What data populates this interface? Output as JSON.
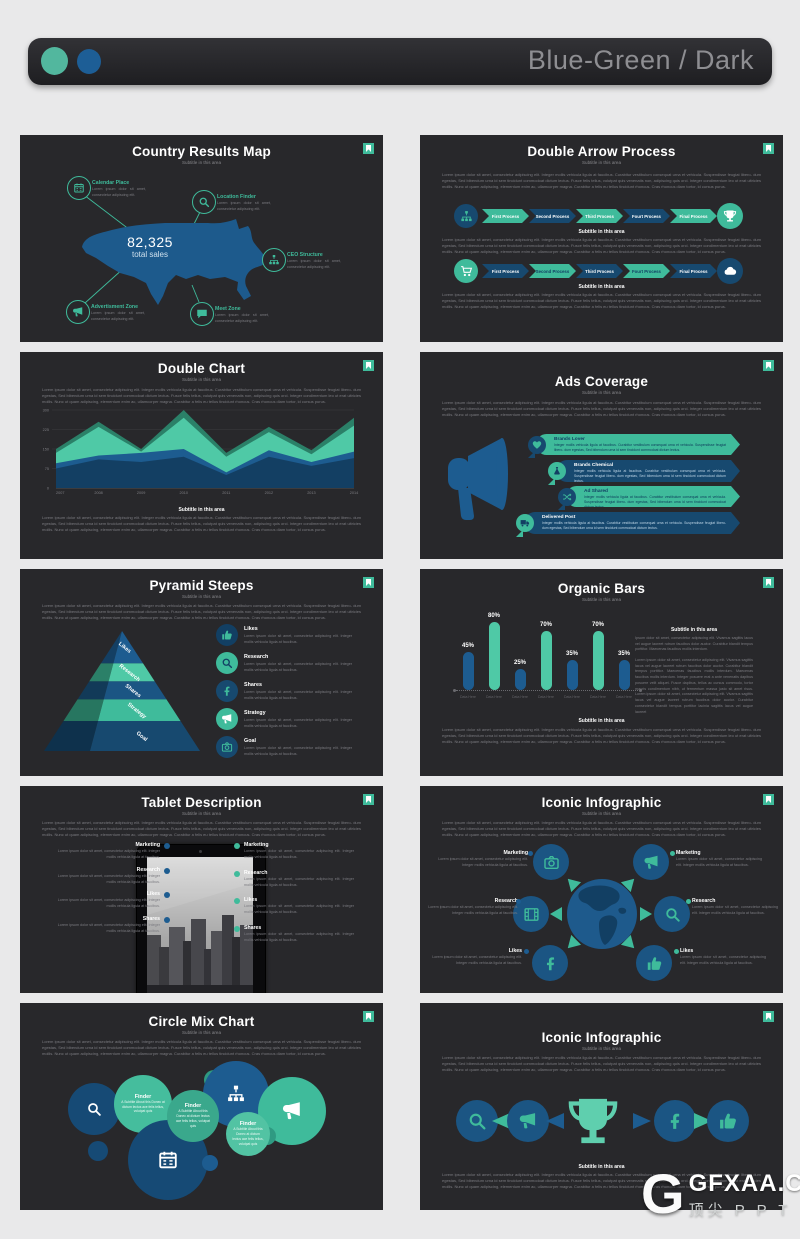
{
  "header": {
    "title": "Blue-Green / Dark",
    "dot1_color": "#52b79e",
    "dot2_color": "#1d5e96"
  },
  "theme": {
    "teal": "#3fbb9b",
    "teal_light": "#4fc9a6",
    "teal_dark": "#2b8068",
    "blue": "#1d5c90",
    "blue_dark": "#17496f",
    "blue_deep": "#123f63",
    "slide_bg": "#28282b",
    "page_bg": "#e9e9ea"
  },
  "common": {
    "subtitle": "Subtitle in this area",
    "lorem_paragraph": "Lorem ipsum dolor sit amet, consectetur adipiscing elit. Integer mollis vehicula ligula at faucibus. Curabitur vestibulum consequat urna et vehicula. Suspendisse feugiat libero- dum egestas, Sed bibendum urna id sem tincidunt commodoat dictum lectus. Fusce felis tellus, volutpat quis venenatis non, adipiscing quis orci. Integer condimentum leo ut erat ultricies mollis. Nunc ut quam adipiscing, elementum enim ac, ullamcorper magna. Curabitur a felis eu tellus tincidunt rhoncus. Cras rhoncus diam tortor, id cursus purus.",
    "lorem_short": "Lorem ipsum dolor sit amet, consectetur adipiscing elit.",
    "lorem_item": "Lorem ipsum dolor sit amet, consectetur adipiscing elit. Integer mollis vehicula ligula at faucibus."
  },
  "slides": {
    "map": {
      "title": "Country Results Map",
      "stat_value": "82,325",
      "stat_label": "total sales",
      "callouts": [
        {
          "icon": "calendar",
          "label": "Calendar Place",
          "text": "Lorem ipsum dolor sit amet, consectetur adipiscing elit."
        },
        {
          "icon": "search",
          "label": "Location Finder",
          "text": "Lorem ipsum dolor sit amet, consectetur adipiscing elit."
        },
        {
          "icon": "sitemap",
          "label": "CEO Structure",
          "text": "Lorem ipsum dolor sit amet, consectetur adipiscing elit."
        },
        {
          "icon": "megaphone",
          "label": "Advertisment Zone",
          "text": "Lorem ipsum dolor sit amet, consectetur adipiscing elit."
        },
        {
          "icon": "chat",
          "label": "Meet Zone",
          "text": "Lorem ipsum dolor sit amet, consectetur adipiscing elit."
        }
      ]
    },
    "double_arrow": {
      "title": "Double Arrow Process",
      "rows": [
        {
          "start_icon": "sitemap",
          "start_bg": "#17496f",
          "start_ic": "#3fbb9b",
          "end_icon": "trophy",
          "end_bg": "#3fbb9b",
          "end_ic": "#ffffff",
          "steps": [
            {
              "label": "First Process",
              "bg": "#3fbb9b",
              "fg": "#ffffff"
            },
            {
              "label": "Second Process",
              "bg": "#17496f",
              "fg": "#ffffff"
            },
            {
              "label": "Third Process",
              "bg": "#3fbb9b",
              "fg": "#ffffff"
            },
            {
              "label": "Fourt Process",
              "bg": "#17496f",
              "fg": "#ffffff"
            },
            {
              "label": "Final Process",
              "bg": "#3fbb9b",
              "fg": "#ffffff"
            }
          ]
        },
        {
          "start_icon": "cart",
          "start_bg": "#3fbb9b",
          "start_ic": "#ffffff",
          "end_icon": "cloud",
          "end_bg": "#17496f",
          "end_ic": "#ffffff",
          "steps": [
            {
              "label": "First Process",
              "bg": "#17496f",
              "fg": "#ffffff"
            },
            {
              "label": "Second Process",
              "bg": "#3fbb9b",
              "fg": "#123f63"
            },
            {
              "label": "Third Process",
              "bg": "#17496f",
              "fg": "#ffffff"
            },
            {
              "label": "Fourt Process",
              "bg": "#3fbb9b",
              "fg": "#123f63"
            },
            {
              "label": "Final Process",
              "bg": "#17496f",
              "fg": "#ffffff"
            }
          ]
        }
      ]
    },
    "double_chart": {
      "title": "Double Chart"
    },
    "ads": {
      "title": "Ads Coverage",
      "items": [
        {
          "icon": "heart",
          "label": "Brands Lover",
          "bg": "#3fbb9b",
          "circle": "#17496f",
          "ic": "#3fbb9b",
          "title_color": "#123f63",
          "text_color": "#0d3a5a",
          "text": "Integer mollis vehicula ligula at faucibus. Curabitur vestibulum consequat urna et vehicula. Suspendisse feugiat libero- dum egestas, Sed bibendum urna id sem tincidunt commodoat dictum lectus."
        },
        {
          "icon": "flask",
          "label": "Brands Chemical",
          "bg": "#17496f",
          "circle": "#3fbb9b",
          "ic": "#123f63",
          "title_color": "#ffffff",
          "text_color": "#bcd3e4",
          "text": "Integer mollis vehicula ligula at faucibus. Curabitur vestibulum consequat urna et vehicula. Suspendisse feugiat libero- dum egestas, Sed bibendum urna id sem tincidunt commodoat dictum lectus."
        },
        {
          "icon": "shuffle",
          "label": "Ad Shared",
          "bg": "#3fbb9b",
          "circle": "#17496f",
          "ic": "#3fbb9b",
          "title_color": "#123f63",
          "text_color": "#0d3a5a",
          "text": "Integer mollis vehicula ligula at faucibus. Curabitur vestibulum consequat urna et vehicula. Suspendisse feugiat libero- dum egestas, Sed bibendum urna id sem tincidunt commodoat dictum lectus."
        },
        {
          "icon": "truck",
          "label": "Delivered Post",
          "bg": "#17496f",
          "circle": "#3fbb9b",
          "ic": "#123f63",
          "title_color": "#ffffff",
          "text_color": "#bcd3e4",
          "text": "Integer mollis vehicula ligula at faucibus. Curabitur vestibulum consequat urna et vehicula. Suspendisse feugiat libero- dum egestas, Sed bibendum urna id sem tincidunt commodoat dictum lectus."
        }
      ]
    },
    "pyramid": {
      "title": "Pyramid Steeps",
      "levels": [
        {
          "label": "Likes",
          "color": "#1d5c90",
          "dark": "#143f63"
        },
        {
          "label": "Research",
          "color": "#4fc9a6",
          "dark": "#2b8068"
        },
        {
          "label": "Shares",
          "color": "#1b5583",
          "dark": "#123a58"
        },
        {
          "label": "Strategy",
          "color": "#3fbb9b",
          "dark": "#277660"
        },
        {
          "label": "Goal",
          "color": "#17496f",
          "dark": "#0e314c"
        }
      ],
      "list": [
        {
          "icon": "thumb",
          "circle": "#123f63",
          "ic": "#3fbb9b",
          "label": "Likes",
          "text": "Lorem ipsum dolor sit amet, consectetur adipiscing elit. Integer mollis vehicula ligula at faucibus."
        },
        {
          "icon": "search",
          "circle": "#3fbb9b",
          "ic": "#123f63",
          "label": "Research",
          "text": "Lorem ipsum dolor sit amet, consectetur adipiscing elit. Integer mollis vehicula ligula at faucibus."
        },
        {
          "icon": "facebook",
          "circle": "#17496f",
          "ic": "#3fbb9b",
          "label": "Shares",
          "text": "Lorem ipsum dolor sit amet, consectetur adipiscing elit. Integer mollis vehicula ligula at faucibus."
        },
        {
          "icon": "megaphone",
          "circle": "#3fbb9b",
          "ic": "#ffffff",
          "label": "Strategy",
          "text": "Lorem ipsum dolor sit amet, consectetur adipiscing elit. Integer mollis vehicula ligula at faucibus."
        },
        {
          "icon": "camera",
          "circle": "#17496f",
          "ic": "#3fbb9b",
          "label": "Goal",
          "text": "Lorem ipsum dolor sit amet, consectetur adipiscing elit. Integer mollis vehicula ligula at faucibus."
        }
      ]
    },
    "bars": {
      "title": "Organic Bars",
      "side_subtitle": "Subtitle in this area",
      "side_par1": "Ipsum dolor sit amet, consectetur adipiscing elit. Vivamus sagittis lacus vel augue laoreet rutrum faucibus dolor auctor. Curabitur blandit tempus porttitor. Maecenas faucibus mollis interdum.",
      "side_par2": "Lorem ipsum dolor sit amet, consectetur adipiscing elit. Vivamus sagittis lacus vel augue laoreet rutrum faucibus dolor auctor. Curabitur blandit tempus porttitor. Maecenas faucibus mollis interdum. Maecenas faucibus mollis interdum. Integer posuere erat a ante venenatis dapibus posuere velit aliquet. Fusce dapibus, tellus ac cursus commodo, tortor mauris condimentum nibh, ut fermentum massa justo sit amet risus. Lorem ipsum dolor sit amet, consectetur adipiscing elit. Vivamus sagittis lacus vel augue laoreet rutrum faucibus dolor auctor. Curabitur consectetur blandit tempus porttitor lacinia sagittis lacus vel augue laoreet"
    },
    "tablet": {
      "title": "Tablet Description",
      "left_dot": "#1d5c90",
      "right_dot": "#3fbb9b",
      "left": [
        {
          "label": "Marketing",
          "text": "Lorem ipsum dolor sit amet, consectetur adipiscing elit. Integer mollis vehicula ligula at faucibus."
        },
        {
          "label": "Research",
          "text": "Lorem ipsum dolor sit amet, consectetur adipiscing elit. Integer mollis vehicula ligula at faucibus."
        },
        {
          "label": "Likes",
          "text": "Lorem ipsum dolor sit amet, consectetur adipiscing elit. Integer mollis vehicula ligula at faucibus."
        },
        {
          "label": "Shares",
          "text": "Lorem ipsum dolor sit amet, consectetur adipiscing elit. Integer mollis vehicula ligula at faucibus."
        }
      ],
      "right": [
        {
          "label": "Marketing",
          "text": "Lorem ipsum dolor sit amet, consectetur adipiscing elit. Integer mollis vehicula ligula at faucibus."
        },
        {
          "label": "Research",
          "text": "Lorem ipsum dolor sit amet, consectetur adipiscing elit. Integer mollis vehicula ligula at faucibus."
        },
        {
          "label": "Likes",
          "text": "Lorem ipsum dolor sit amet, consectetur adipiscing elit. Integer mollis vehicula ligula at faucibus."
        },
        {
          "label": "Shares",
          "text": "Lorem ipsum dolor sit amet, consectetur adipiscing elit. Integer mollis vehicula ligula at faucibus."
        }
      ]
    },
    "globe": {
      "title": "Iconic Infographic",
      "left": [
        {
          "icon": "camera",
          "label": "Marketing",
          "text": "Lorem ipsum dolor sit amet, consectetur adipiscing elit. Integer mollis vehicula ligula at faucibus."
        },
        {
          "icon": "film",
          "label": "Research",
          "text": "Lorem ipsum dolor sit amet, consectetur adipiscing elit. Integer mollis vehicula ligula at faucibus."
        },
        {
          "icon": "facebook",
          "label": "Likes",
          "text": "Lorem ipsum dolor sit amet, consectetur adipiscing elit. Integer mollis vehicula ligula at faucibus."
        }
      ],
      "right": [
        {
          "icon": "megaphone",
          "label": "Marketing",
          "text": "Lorem ipsum dolor sit amet, consectetur adipiscing elit. Integer mollis vehicula ligula at faucibus."
        },
        {
          "icon": "search",
          "label": "Research",
          "text": "Lorem ipsum dolor sit amet, consectetur adipiscing elit. Integer mollis vehicula ligula at faucibus."
        },
        {
          "icon": "thumb",
          "label": "Likes",
          "text": "Lorem ipsum dolor sit amet, consectetur adipiscing elit. Integer mollis vehicula ligula at faucibus."
        }
      ]
    },
    "circles": {
      "title": "Circle Mix Chart",
      "finder_title": "Finder",
      "finder_text": "A Subtitle About this Donec at dictum lectus ace felis tellus, volutpat quis"
    },
    "trophy": {
      "title": "Iconic Infographic"
    }
  },
  "chart_data": [
    {
      "type": "area",
      "title": "Double Chart",
      "x": [
        "2007",
        "2008",
        "2009",
        "2010",
        "2011",
        "2012",
        "2013",
        "2014"
      ],
      "ylim": [
        0,
        300
      ],
      "yticks": [
        0,
        75,
        150,
        225,
        300
      ],
      "grid": true,
      "legend": "none",
      "series": [
        {
          "name": "Teal series (top edge)",
          "color": "#2b8068",
          "values": [
            150,
            255,
            150,
            300,
            135,
            235,
            145,
            270
          ]
        },
        {
          "name": "Teal series",
          "color": "#4fc9a6",
          "values": [
            135,
            235,
            140,
            270,
            120,
            215,
            130,
            240
          ]
        },
        {
          "name": "Blue series",
          "color": "#1d5c90",
          "values": [
            95,
            125,
            135,
            150,
            60,
            145,
            100,
            140
          ]
        },
        {
          "name": "Blue series (dark)",
          "color": "#133f63",
          "values": [
            75,
            110,
            100,
            120,
            50,
            120,
            85,
            115
          ]
        }
      ]
    },
    {
      "type": "bar",
      "title": "Organic Bars",
      "categories": [
        "Data Here",
        "Data Here",
        "Data Here",
        "Data Here",
        "Data Here",
        "Data Here",
        "Data Here"
      ],
      "values": [
        45,
        80,
        25,
        70,
        35,
        70,
        35
      ],
      "labels": [
        "45%",
        "80%",
        "25%",
        "70%",
        "35%",
        "70%",
        "35%"
      ],
      "colors": [
        "#1d5c90",
        "#4fc9a6",
        "#1d5c90",
        "#4fc9a6",
        "#1d5c90",
        "#4fc9a6",
        "#1d5c90"
      ],
      "ylim": [
        0,
        100
      ],
      "baseline": "dotted"
    }
  ],
  "watermark": {
    "logo_letter": "G",
    "text": "GFXAA.COM",
    "subtext": "顶尖 P P T"
  }
}
